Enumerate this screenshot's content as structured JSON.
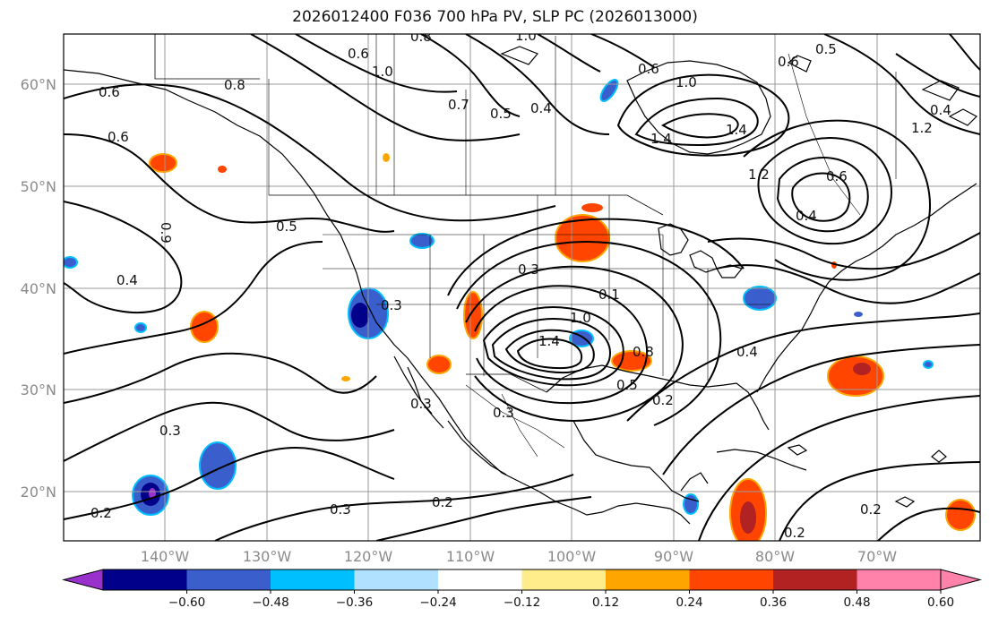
{
  "title": "2026012400 F036 700 hPa PV, SLP PC (2026013000)",
  "map": {
    "latitude_labels": [
      "60°N",
      "50°N",
      "40°N",
      "30°N",
      "20°N"
    ],
    "longitude_labels": [
      "140°W",
      "130°W",
      "120°W",
      "110°W",
      "100°W",
      "90°W",
      "80°W",
      "70°W"
    ],
    "grid": true,
    "land_outline_color": "#000000",
    "contour_labels": [
      "0.6",
      "0.8",
      "1.0",
      "0.8",
      "0.6",
      "1.0",
      "0.7",
      "0.5",
      "0.4",
      "0.6",
      "1.0",
      "1.4",
      "1.2",
      "0.5",
      "0.6",
      "0.4",
      "1.4",
      "1.2",
      "0.6",
      "0.6",
      "0.9",
      "0.5",
      "0.4",
      "0.3",
      "0.3",
      "0.1",
      "1.0",
      "1.4",
      "0.8",
      "0.5",
      "0.4",
      "0.2",
      "0.3",
      "0.3",
      "0.3",
      "0.3",
      "0.2",
      "0.2",
      "0.2",
      "0.2"
    ]
  },
  "colorbar": {
    "tick_labels": [
      "−0.60",
      "−0.48",
      "−0.36",
      "−0.24",
      "−0.12",
      "0.12",
      "0.24",
      "0.36",
      "0.48",
      "0.60"
    ],
    "colors": [
      "#9932cc",
      "#00008b",
      "#3a5fcd",
      "#00bfff",
      "#b0e2ff",
      "#ffffff",
      "#ffec8b",
      "#ffa500",
      "#ff4500",
      "#b22222",
      "#ff82ab",
      "#ff82ab"
    ],
    "under_color": "#9932cc",
    "over_color": "#ff82ab"
  }
}
